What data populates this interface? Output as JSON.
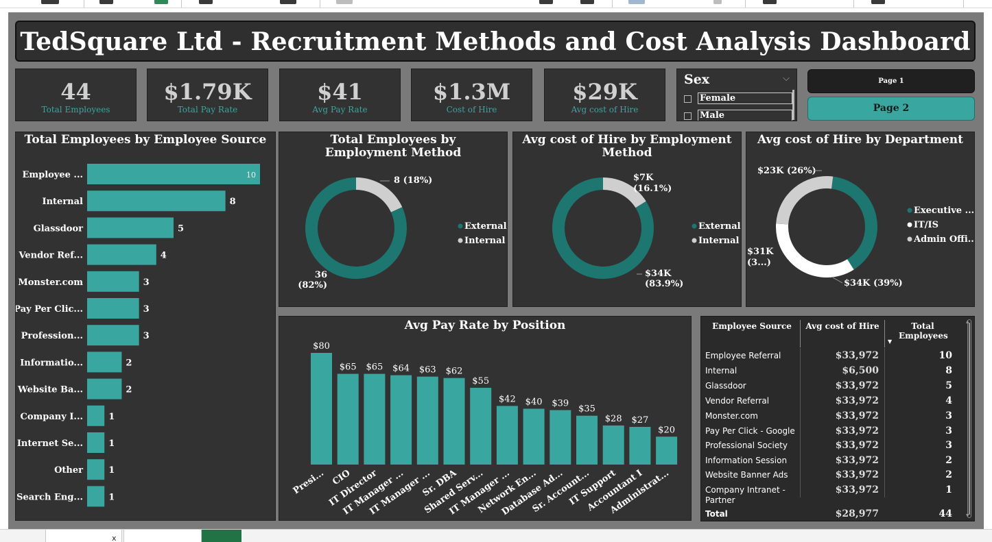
{
  "dashboard": {
    "title": "TedSquare Ltd - Recruitment Methods and Cost Analysis Dashboard"
  },
  "kpis": [
    {
      "value": "44",
      "label": "Total Employees"
    },
    {
      "value": "$1.79K",
      "label": "Total Pay Rate"
    },
    {
      "value": "$41",
      "label": "Avg Pay Rate"
    },
    {
      "value": "$1.3M",
      "label": "Cost of Hire"
    },
    {
      "value": "$29K",
      "label": "Avg cost of Hire"
    }
  ],
  "slicer": {
    "title": "Sex",
    "options": [
      "Female",
      "Male"
    ]
  },
  "nav": {
    "page1": "Page 1",
    "page2": "Page 2"
  },
  "colors": {
    "teal": "#3aa6a0",
    "dark_teal": "#1d766f",
    "light_gray": "#cfcfcf",
    "white": "#ffffff",
    "panel": "#323232"
  },
  "charts": {
    "employee_source": {
      "title": "Total Employees by Employee Source",
      "type": "bar",
      "categories": [
        "Employee ...",
        "Internal",
        "Glassdoor",
        "Vendor Ref...",
        "Monster.com",
        "Pay Per Clic...",
        "Profession...",
        "Informatio...",
        "Website Ba...",
        "Company I...",
        "Internet Se...",
        "Other",
        "Search Eng..."
      ],
      "values": [
        10,
        8,
        5,
        4,
        3,
        3,
        3,
        2,
        2,
        1,
        1,
        1,
        1
      ]
    },
    "employment_method": {
      "title": "Total Employees by Employment Method",
      "type": "pie",
      "legend": [
        "External",
        "Internal"
      ],
      "values": [
        36,
        8
      ],
      "labels": [
        "36 (82%)",
        "8 (18%)"
      ]
    },
    "cost_by_method": {
      "title": "Avg cost of Hire by Employment Method",
      "type": "pie",
      "legend": [
        "External",
        "Internal"
      ],
      "values": [
        83.9,
        16.1
      ],
      "labels": [
        "$34K (83.9%)",
        "$7K (16.1%)"
      ]
    },
    "cost_by_department": {
      "title": "Avg cost of Hire by Department",
      "type": "pie",
      "legend": [
        "Executive ...",
        "IT/IS",
        "Admin Offi..."
      ],
      "values": [
        39,
        35,
        26
      ],
      "labels": [
        "$34K (39%)",
        "$31K (3...)",
        "$23K (26%)"
      ]
    },
    "pay_by_position": {
      "title": "Avg Pay Rate by Position",
      "type": "bar",
      "categories": [
        "Presi...",
        "CIO",
        "IT Director",
        "IT Manager ...",
        "IT Manager ...",
        "Sr. DBA",
        "Shared Serv...",
        "IT Manager ...",
        "Network En...",
        "Database Ad...",
        "Sr. Account...",
        "IT Support",
        "Accountant I",
        "Administrat..."
      ],
      "values": [
        80,
        65,
        65,
        64,
        63,
        62,
        55,
        42,
        40,
        39,
        35,
        28,
        27,
        20
      ],
      "labels": [
        "$80",
        "$65",
        "$65",
        "$64",
        "$63",
        "$62",
        "$55",
        "$42",
        "$40",
        "$39",
        "$35",
        "$28",
        "$27",
        "$20"
      ]
    }
  },
  "table": {
    "headers": [
      "Employee Source",
      "Avg cost of Hire",
      "Total Employees"
    ],
    "rows": [
      {
        "source": "Employee Referral",
        "cost": "$33,972",
        "total": "10"
      },
      {
        "source": "Internal",
        "cost": "$6,500",
        "total": "8"
      },
      {
        "source": "Glassdoor",
        "cost": "$33,972",
        "total": "5"
      },
      {
        "source": "Vendor Referral",
        "cost": "$33,972",
        "total": "4"
      },
      {
        "source": "Monster.com",
        "cost": "$33,972",
        "total": "3"
      },
      {
        "source": "Pay Per Click - Google",
        "cost": "$33,972",
        "total": "3"
      },
      {
        "source": "Professional Society",
        "cost": "$33,972",
        "total": "3"
      },
      {
        "source": "Information Session",
        "cost": "$33,972",
        "total": "2"
      },
      {
        "source": "Website Banner Ads",
        "cost": "$33,972",
        "total": "2"
      },
      {
        "source": "Company Intranet - Partner",
        "cost": "$33,972",
        "total": "1"
      }
    ],
    "total": {
      "source": "Total",
      "cost": "$28,977",
      "total": "44"
    }
  },
  "chart_data": [
    {
      "type": "bar",
      "title": "Total Employees by Employee Source",
      "categories": [
        "Employee ...",
        "Internal",
        "Glassdoor",
        "Vendor Ref...",
        "Monster.com",
        "Pay Per Clic...",
        "Profession...",
        "Informatio...",
        "Website Ba...",
        "Company I...",
        "Internet Se...",
        "Other",
        "Search Eng..."
      ],
      "values": [
        10,
        8,
        5,
        4,
        3,
        3,
        3,
        2,
        2,
        1,
        1,
        1,
        1
      ],
      "orientation": "horizontal"
    },
    {
      "type": "pie",
      "title": "Total Employees by Employment Method",
      "categories": [
        "External",
        "Internal"
      ],
      "values": [
        36,
        8
      ]
    },
    {
      "type": "pie",
      "title": "Avg cost of Hire by Employment Method",
      "categories": [
        "External",
        "Internal"
      ],
      "values": [
        34000,
        7000
      ]
    },
    {
      "type": "pie",
      "title": "Avg cost of Hire by Department",
      "categories": [
        "Executive ...",
        "IT/IS",
        "Admin Offi..."
      ],
      "values": [
        34000,
        31000,
        23000
      ]
    },
    {
      "type": "bar",
      "title": "Avg Pay Rate by Position",
      "categories": [
        "Presi...",
        "CIO",
        "IT Director",
        "IT Manager ...",
        "IT Manager ...",
        "Sr. DBA",
        "Shared Serv...",
        "IT Manager ...",
        "Network En...",
        "Database Ad...",
        "Sr. Account...",
        "IT Support",
        "Accountant I",
        "Administrat..."
      ],
      "values": [
        80,
        65,
        65,
        64,
        63,
        62,
        55,
        42,
        40,
        39,
        35,
        28,
        27,
        20
      ]
    }
  ]
}
